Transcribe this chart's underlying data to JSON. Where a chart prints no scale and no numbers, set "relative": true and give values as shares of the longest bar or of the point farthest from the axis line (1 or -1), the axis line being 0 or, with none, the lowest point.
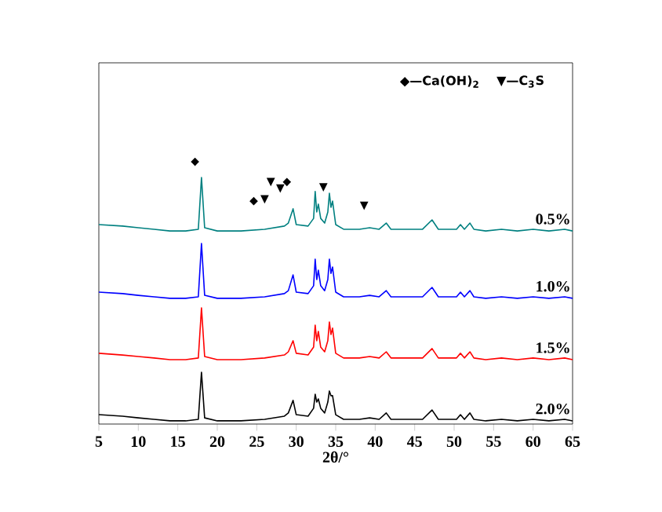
{
  "chart_data": {
    "type": "line",
    "relative": true,
    "xlabel": "2θ/°",
    "xlim": [
      5,
      65
    ],
    "xticks": [
      5,
      10,
      15,
      20,
      25,
      30,
      35,
      40,
      45,
      50,
      55,
      60,
      65
    ],
    "tick_labels": "x",
    "grid": false,
    "marker": "none",
    "line_style": "solid",
    "x": [
      5,
      8,
      10,
      12,
      14,
      16,
      17.6,
      18.0,
      18.4,
      20,
      23,
      26,
      28.5,
      29.0,
      29.6,
      30.0,
      31.5,
      32.2,
      32.4,
      32.6,
      32.8,
      33.1,
      33.6,
      34.0,
      34.2,
      34.4,
      34.6,
      35.0,
      36,
      38,
      39.3,
      40.5,
      41.4,
      42.0,
      44,
      46,
      47.2,
      48.0,
      50.3,
      50.8,
      51.3,
      52.0,
      52.5,
      54,
      56,
      58,
      60,
      62,
      64,
      65
    ],
    "series": [
      {
        "name": "0.5%",
        "color": "#008080",
        "values": [
          0.809,
          0.803,
          0.796,
          0.79,
          0.783,
          0.783,
          0.79,
          1.0,
          0.796,
          0.783,
          0.783,
          0.79,
          0.803,
          0.815,
          0.873,
          0.809,
          0.803,
          0.834,
          0.943,
          0.86,
          0.892,
          0.834,
          0.815,
          0.86,
          0.936,
          0.879,
          0.904,
          0.809,
          0.79,
          0.79,
          0.796,
          0.79,
          0.815,
          0.79,
          0.79,
          0.79,
          0.828,
          0.79,
          0.79,
          0.809,
          0.79,
          0.815,
          0.79,
          0.783,
          0.79,
          0.783,
          0.79,
          0.783,
          0.79,
          0.783
        ]
      },
      {
        "name": "1.0%",
        "color": "#0000ff",
        "values": [
          0.535,
          0.529,
          0.522,
          0.516,
          0.51,
          0.51,
          0.516,
          0.732,
          0.522,
          0.51,
          0.51,
          0.516,
          0.529,
          0.541,
          0.605,
          0.535,
          0.529,
          0.561,
          0.669,
          0.586,
          0.624,
          0.561,
          0.541,
          0.586,
          0.669,
          0.611,
          0.637,
          0.535,
          0.516,
          0.516,
          0.522,
          0.516,
          0.541,
          0.516,
          0.516,
          0.516,
          0.554,
          0.516,
          0.516,
          0.535,
          0.516,
          0.541,
          0.516,
          0.51,
          0.516,
          0.51,
          0.516,
          0.51,
          0.516,
          0.51
        ]
      },
      {
        "name": "1.5%",
        "color": "#ff0000",
        "values": [
          0.287,
          0.28,
          0.274,
          0.268,
          0.261,
          0.261,
          0.268,
          0.471,
          0.274,
          0.261,
          0.261,
          0.268,
          0.28,
          0.293,
          0.338,
          0.287,
          0.28,
          0.312,
          0.401,
          0.338,
          0.376,
          0.312,
          0.293,
          0.338,
          0.414,
          0.363,
          0.389,
          0.287,
          0.268,
          0.268,
          0.274,
          0.268,
          0.293,
          0.268,
          0.268,
          0.268,
          0.306,
          0.268,
          0.268,
          0.287,
          0.268,
          0.293,
          0.268,
          0.261,
          0.268,
          0.261,
          0.268,
          0.261,
          0.268,
          0.261
        ]
      },
      {
        "name": "2.0%",
        "color": "#000000",
        "values": [
          0.038,
          0.032,
          0.025,
          0.019,
          0.013,
          0.013,
          0.019,
          0.21,
          0.025,
          0.013,
          0.013,
          0.019,
          0.032,
          0.045,
          0.096,
          0.038,
          0.032,
          0.064,
          0.121,
          0.089,
          0.102,
          0.064,
          0.045,
          0.089,
          0.134,
          0.115,
          0.115,
          0.038,
          0.019,
          0.019,
          0.025,
          0.019,
          0.045,
          0.019,
          0.019,
          0.019,
          0.057,
          0.019,
          0.019,
          0.038,
          0.019,
          0.045,
          0.019,
          0.013,
          0.019,
          0.013,
          0.019,
          0.013,
          0.019,
          0.013
        ]
      }
    ],
    "annotations": [
      "◆—Ca(OH)$_{2}$",
      "▼—C$_{3}$S",
      "◆",
      "◆",
      "▼",
      "▼",
      "▼",
      "◆",
      "▼",
      "▼"
    ]
  }
}
